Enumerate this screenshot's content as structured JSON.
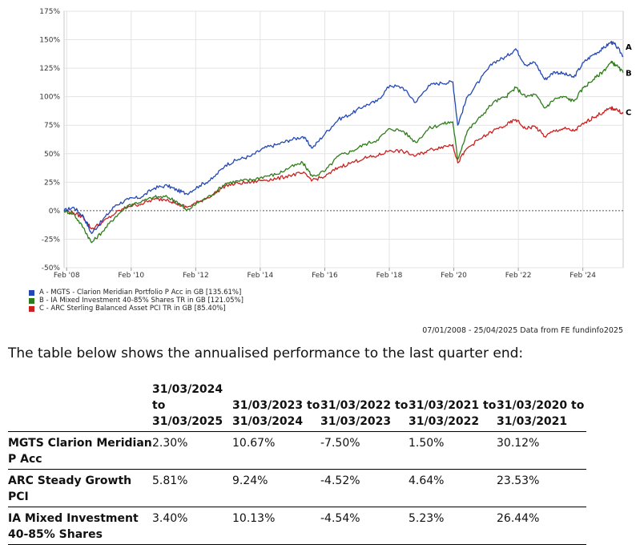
{
  "chart_data": {
    "type": "line",
    "y_axis_ticks": [
      "175%",
      "150%",
      "125%",
      "100%",
      "75%",
      "50%",
      "25%",
      "0%",
      "-25%",
      "-50%"
    ],
    "x_axis_ticks": [
      "Feb '08",
      "Feb '10",
      "Feb '12",
      "Feb '14",
      "Feb '16",
      "Feb '18",
      "Feb '20",
      "Feb '22",
      "Feb '24"
    ],
    "ylim": [
      -50,
      175
    ],
    "xlim": [
      2008.0,
      2025.33
    ],
    "grid": true,
    "legend_position": "bottom-left",
    "series": [
      {
        "name": "A - MGTS - Clarion Meridian Portfolio P Acc in GB [135.61%]",
        "end_label": "A",
        "color": "#2347b5",
        "x": [
          2008.0,
          2008.3,
          2008.6,
          2008.85,
          2009.2,
          2009.6,
          2010.0,
          2010.4,
          2010.8,
          2011.2,
          2011.5,
          2011.8,
          2012.2,
          2012.6,
          2013.0,
          2013.4,
          2013.8,
          2014.2,
          2014.6,
          2015.0,
          2015.4,
          2015.7,
          2016.1,
          2016.5,
          2016.9,
          2017.3,
          2017.7,
          2018.1,
          2018.5,
          2018.9,
          2019.3,
          2019.7,
          2020.05,
          2020.2,
          2020.5,
          2020.9,
          2021.3,
          2021.7,
          2022.0,
          2022.3,
          2022.6,
          2022.9,
          2023.2,
          2023.5,
          2023.8,
          2024.1,
          2024.4,
          2024.7,
          2024.95,
          2025.1,
          2025.33
        ],
        "y": [
          0,
          3,
          -5,
          -20,
          -8,
          5,
          10,
          12,
          20,
          22,
          18,
          15,
          22,
          28,
          40,
          45,
          48,
          55,
          58,
          62,
          65,
          55,
          68,
          80,
          85,
          92,
          96,
          110,
          108,
          95,
          110,
          112,
          113,
          75,
          100,
          115,
          130,
          135,
          142,
          128,
          130,
          115,
          122,
          120,
          117,
          130,
          137,
          142,
          148,
          145,
          135.61
        ]
      },
      {
        "name": "B - IA Mixed Investment 40-85% Shares TR in GB [121.05%]",
        "end_label": "B",
        "color": "#2e7d1a",
        "x": [
          2008.0,
          2008.3,
          2008.6,
          2008.85,
          2009.2,
          2009.6,
          2010.0,
          2010.4,
          2010.8,
          2011.2,
          2011.5,
          2011.8,
          2012.2,
          2012.6,
          2013.0,
          2013.4,
          2013.8,
          2014.2,
          2014.6,
          2015.0,
          2015.4,
          2015.7,
          2016.1,
          2016.5,
          2016.9,
          2017.3,
          2017.7,
          2018.1,
          2018.5,
          2018.9,
          2019.3,
          2019.7,
          2020.05,
          2020.2,
          2020.5,
          2020.9,
          2021.3,
          2021.7,
          2022.0,
          2022.3,
          2022.6,
          2022.9,
          2023.2,
          2023.5,
          2023.8,
          2024.1,
          2024.4,
          2024.7,
          2024.95,
          2025.1,
          2025.33
        ],
        "y": [
          0,
          -3,
          -15,
          -28,
          -18,
          -5,
          5,
          8,
          12,
          12,
          8,
          0,
          8,
          14,
          24,
          26,
          27,
          30,
          32,
          38,
          42,
          30,
          35,
          48,
          52,
          58,
          62,
          72,
          70,
          60,
          72,
          76,
          78,
          45,
          70,
          82,
          95,
          100,
          108,
          100,
          102,
          90,
          98,
          100,
          96,
          108,
          115,
          122,
          130,
          128,
          121.05
        ]
      },
      {
        "name": "C - ARC Sterling Balanced Asset PCI TR in GB [85.40%]",
        "end_label": "C",
        "color": "#cc1f1f",
        "x": [
          2008.0,
          2008.3,
          2008.6,
          2008.85,
          2009.2,
          2009.6,
          2010.0,
          2010.4,
          2010.8,
          2011.2,
          2011.5,
          2011.8,
          2012.2,
          2012.6,
          2013.0,
          2013.4,
          2013.8,
          2014.2,
          2014.6,
          2015.0,
          2015.4,
          2015.7,
          2016.1,
          2016.5,
          2016.9,
          2017.3,
          2017.7,
          2018.1,
          2018.5,
          2018.9,
          2019.3,
          2019.7,
          2020.05,
          2020.2,
          2020.5,
          2020.9,
          2021.3,
          2021.7,
          2022.0,
          2022.3,
          2022.6,
          2022.9,
          2023.2,
          2023.5,
          2023.8,
          2024.1,
          2024.4,
          2024.7,
          2024.95,
          2025.1,
          2025.33
        ],
        "y": [
          0,
          -2,
          -6,
          -16,
          -10,
          -2,
          4,
          6,
          10,
          10,
          6,
          3,
          8,
          14,
          22,
          24,
          25,
          27,
          28,
          31,
          33,
          27,
          30,
          38,
          42,
          46,
          48,
          53,
          52,
          48,
          53,
          56,
          58,
          42,
          55,
          63,
          70,
          75,
          80,
          72,
          74,
          65,
          70,
          72,
          70,
          76,
          82,
          86,
          90,
          89,
          85.4
        ]
      }
    ]
  },
  "source_note": "07/01/2008 - 25/04/2025 Data from FE fundinfo2025",
  "intro_text": "The table below shows the annualised performance to the last quarter end:",
  "table": {
    "headers": [
      "",
      "31/03/2024 to 31/03/2025",
      "31/03/2023 to 31/03/2024",
      "31/03/2022 to 31/03/2023",
      "31/03/2021 to 31/03/2022",
      "31/03/2020 to 31/03/2021"
    ],
    "rows": [
      [
        "MGTS Clarion Meridian P Acc",
        "2.30%",
        "10.67%",
        "-7.50%",
        "1.50%",
        "30.12%"
      ],
      [
        "ARC Steady Growth PCI",
        "5.81%",
        "9.24%",
        "-4.52%",
        "4.64%",
        "23.53%"
      ],
      [
        "IA Mixed Investment 40-85% Shares",
        "3.40%",
        "10.13%",
        "-4.54%",
        "5.23%",
        "26.44%"
      ]
    ]
  }
}
